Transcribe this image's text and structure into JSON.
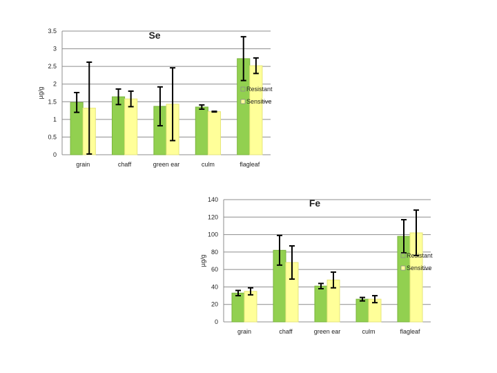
{
  "chart_data": [
    {
      "type": "bar",
      "title": "Se",
      "ylabel": "µg/g",
      "xlabel": "",
      "categories": [
        "grain",
        "chaff",
        "green ear",
        "culm",
        "flagleaf"
      ],
      "ylim": [
        0,
        3.5
      ],
      "yticks": [
        "0",
        "0.5",
        "1",
        "1.5",
        "2",
        "2.5",
        "3",
        "3.5"
      ],
      "ytick_values": [
        0,
        0.5,
        1,
        1.5,
        2,
        2.5,
        3,
        3.5
      ],
      "grid": true,
      "legend_position": "right",
      "series": [
        {
          "name": "Resistant",
          "color": "#92d050",
          "values": [
            1.48,
            1.64,
            1.37,
            1.35,
            2.72
          ],
          "err": [
            0.28,
            0.22,
            0.55,
            0.06,
            0.62
          ]
        },
        {
          "name": "Sensitive",
          "color": "#ffff99",
          "values": [
            1.32,
            1.58,
            1.43,
            1.22,
            2.52
          ],
          "err": [
            1.3,
            0.22,
            1.03,
            0.01,
            0.22
          ]
        }
      ]
    },
    {
      "type": "bar",
      "title": "Fe",
      "ylabel": "µg/g",
      "xlabel": "",
      "categories": [
        "grain",
        "chaff",
        "green ear",
        "culm",
        "flagleaf"
      ],
      "ylim": [
        0,
        140
      ],
      "yticks": [
        "0",
        "20",
        "40",
        "60",
        "80",
        "100",
        "120",
        "140"
      ],
      "ytick_values": [
        0,
        20,
        40,
        60,
        80,
        100,
        120,
        140
      ],
      "grid": true,
      "legend_position": "right",
      "series": [
        {
          "name": "Resistant",
          "color": "#92d050",
          "values": [
            33,
            82,
            41,
            26,
            98
          ],
          "err": [
            3,
            17,
            3,
            2,
            19
          ]
        },
        {
          "name": "Sensitive",
          "color": "#ffff99",
          "values": [
            35,
            68,
            48,
            26,
            102
          ],
          "err": [
            4,
            19,
            9,
            4,
            26
          ]
        }
      ]
    }
  ]
}
